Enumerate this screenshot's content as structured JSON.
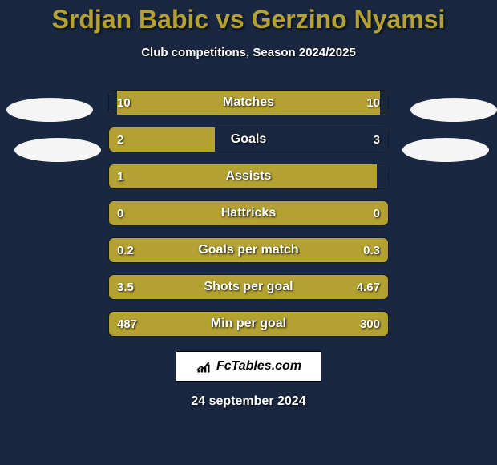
{
  "background_color": "#1a2740",
  "title": "Srdjan Babic vs Gerzino Nyamsi",
  "title_color": "#b3a132",
  "subtitle": "Club competitions, Season 2024/2025",
  "decor_color": "#f5f5f5",
  "bar_track_color": "#b3a132",
  "bar_fill_color": "#1a2740",
  "bars": [
    {
      "label": "Matches",
      "left_value": "10",
      "right_value": "10",
      "left_pct": 3,
      "right_pct": 3
    },
    {
      "label": "Goals",
      "left_value": "2",
      "right_value": "3",
      "left_pct": 0,
      "right_pct": 62
    },
    {
      "label": "Assists",
      "left_value": "1",
      "right_value": "",
      "left_pct": 0,
      "right_pct": 4
    },
    {
      "label": "Hattricks",
      "left_value": "0",
      "right_value": "0",
      "left_pct": 0,
      "right_pct": 0
    },
    {
      "label": "Goals per match",
      "left_value": "0.2",
      "right_value": "0.3",
      "left_pct": 0,
      "right_pct": 0
    },
    {
      "label": "Shots per goal",
      "left_value": "3.5",
      "right_value": "4.67",
      "left_pct": 0,
      "right_pct": 0
    },
    {
      "label": "Min per goal",
      "left_value": "487",
      "right_value": "300",
      "left_pct": 0,
      "right_pct": 0
    }
  ],
  "watermark": "FcTables.com",
  "date": "24 september 2024"
}
